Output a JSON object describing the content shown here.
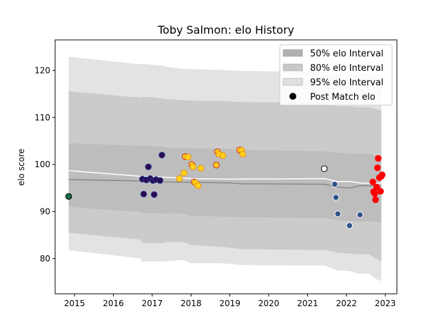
{
  "chart_data": {
    "type": "line",
    "title": "Toby Salmon: elo History",
    "xlabel": "",
    "ylabel": "elo score",
    "xlim": [
      2014.5,
      2023.3
    ],
    "ylim": [
      72.5,
      126.5
    ],
    "xticks": [
      2015,
      2016,
      2017,
      2018,
      2019,
      2020,
      2021,
      2022,
      2023
    ],
    "yticks": [
      80,
      90,
      100,
      110,
      120
    ],
    "grid": false,
    "legend_position": "top-right",
    "legend": [
      {
        "label": "50% elo Interval",
        "kind": "band",
        "color": "#b0b0b0"
      },
      {
        "label": "80% elo Interval",
        "kind": "band",
        "color": "#c8c8c8"
      },
      {
        "label": "95% elo Interval",
        "kind": "band",
        "color": "#e0e0e0"
      },
      {
        "label": "Post Match elo",
        "kind": "marker",
        "color": "#000000"
      }
    ],
    "bands": [
      {
        "name": "95% elo Interval",
        "color": "#e3e3e3",
        "x": [
          2014.85,
          2016.7,
          2016.75,
          2017.0,
          2017.3,
          2017.35,
          2017.8,
          2018.0,
          2018.8,
          2019.3,
          2021.45,
          2021.75,
          2022.1,
          2022.3,
          2022.6,
          2022.75,
          2022.9
        ],
        "upper": [
          122.9,
          121.3,
          121.4,
          121.2,
          121.0,
          120.8,
          120.3,
          120.3,
          120.1,
          119.9,
          119.7,
          119.3,
          119.2,
          119.2,
          119.3,
          118.7,
          118.4
        ],
        "lower": [
          81.8,
          80.0,
          79.3,
          79.4,
          79.3,
          79.4,
          79.7,
          79.0,
          79.0,
          78.6,
          78.5,
          77.5,
          77.3,
          76.8,
          76.8,
          75.7,
          75.2
        ]
      },
      {
        "name": "80% elo Interval",
        "color": "#cbcbcb",
        "x": [
          2014.85,
          2016.7,
          2016.75,
          2017.0,
          2017.3,
          2017.35,
          2017.8,
          2018.0,
          2018.8,
          2019.3,
          2021.45,
          2021.75,
          2022.1,
          2022.3,
          2022.6,
          2022.75,
          2022.9
        ],
        "upper": [
          115.6,
          114.2,
          114.4,
          114.3,
          114.0,
          113.9,
          113.7,
          113.6,
          113.5,
          113.3,
          113.1,
          112.4,
          112.4,
          112.2,
          112.2,
          111.8,
          111.5
        ],
        "lower": [
          85.5,
          84.0,
          83.3,
          83.3,
          83.3,
          83.5,
          83.5,
          82.9,
          82.5,
          82.0,
          81.8,
          81.3,
          81.0,
          80.9,
          80.9,
          80.0,
          79.4
        ]
      },
      {
        "name": "50% elo Interval",
        "color": "#bdbdbd",
        "x": [
          2014.85,
          2016.7,
          2016.75,
          2017.0,
          2017.3,
          2017.35,
          2017.8,
          2018.0,
          2018.8,
          2019.3,
          2021.45,
          2021.75,
          2022.1,
          2022.3,
          2022.6,
          2022.75,
          2022.9
        ],
        "upper": [
          104.5,
          104.0,
          104.1,
          103.9,
          103.7,
          103.6,
          103.5,
          103.4,
          103.4,
          103.1,
          102.8,
          102.5,
          102.4,
          102.3,
          102.3,
          101.9,
          101.9
        ],
        "lower": [
          91.0,
          89.9,
          89.6,
          89.7,
          89.5,
          89.6,
          89.5,
          89.1,
          88.9,
          88.8,
          88.6,
          88.2,
          88.0,
          87.9,
          87.9,
          87.8,
          87.7
        ]
      }
    ],
    "series": [
      {
        "kind": "line",
        "color": "#888888",
        "x": [
          2014.85,
          2016.7,
          2017.0,
          2017.3,
          2018.0,
          2019.0,
          2019.3,
          2021.45,
          2021.75,
          2022.1,
          2022.35,
          2022.9
        ],
        "y": [
          96.8,
          96.5,
          96.4,
          96.3,
          96.2,
          96.1,
          95.9,
          95.8,
          95.2,
          95.0,
          95.5,
          95.4
        ]
      },
      {
        "kind": "line",
        "color": "#ffffff",
        "x": [
          2014.85,
          2016.7,
          2017.0,
          2017.3,
          2017.8,
          2018.0,
          2018.8,
          2019.3,
          2021.45,
          2021.75,
          2022.1,
          2022.4,
          2022.9
        ],
        "y": [
          98.7,
          97.5,
          97.4,
          97.3,
          97.1,
          97.0,
          96.9,
          96.9,
          97.0,
          96.4,
          96.4,
          96.0,
          96.0
        ]
      }
    ],
    "points": [
      {
        "x": 2014.85,
        "y": 93.2,
        "fill": "#1b6e4a",
        "stroke": "#000000"
      },
      {
        "x": 2016.75,
        "y": 96.9,
        "fill": "#2b0a4f",
        "stroke": "#2b3f9a"
      },
      {
        "x": 2016.78,
        "y": 93.7,
        "fill": "#2b0a4f",
        "stroke": "#2b3f9a"
      },
      {
        "x": 2016.85,
        "y": 96.7,
        "fill": "#2b0a4f",
        "stroke": "#2b3f9a"
      },
      {
        "x": 2016.9,
        "y": 99.5,
        "fill": "#2b0a4f",
        "stroke": "#2b3f9a"
      },
      {
        "x": 2016.95,
        "y": 97.0,
        "fill": "#2b0a4f",
        "stroke": "#2b3f9a"
      },
      {
        "x": 2017.02,
        "y": 96.6,
        "fill": "#2b0a4f",
        "stroke": "#2b3f9a"
      },
      {
        "x": 2017.05,
        "y": 93.6,
        "fill": "#2b0a4f",
        "stroke": "#2b3f9a"
      },
      {
        "x": 2017.1,
        "y": 96.8,
        "fill": "#2b0a4f",
        "stroke": "#2b3f9a"
      },
      {
        "x": 2017.2,
        "y": 96.6,
        "fill": "#2b0a4f",
        "stroke": "#2b3f9a"
      },
      {
        "x": 2017.25,
        "y": 102.0,
        "fill": "#2b0a4f",
        "stroke": "#2b3f9a"
      },
      {
        "x": 2017.7,
        "y": 97.0,
        "fill": "#ffd21f",
        "stroke": "#f08c00"
      },
      {
        "x": 2017.82,
        "y": 98.2,
        "fill": "#ffd21f",
        "stroke": "#f08c00"
      },
      {
        "x": 2017.85,
        "y": 101.7,
        "fill": "#ffd21f",
        "stroke": "#d42020"
      },
      {
        "x": 2017.92,
        "y": 101.6,
        "fill": "#ffd21f",
        "stroke": "#f08c00"
      },
      {
        "x": 2018.02,
        "y": 100.0,
        "fill": "#ffd21f",
        "stroke": "#d42020"
      },
      {
        "x": 2018.05,
        "y": 99.5,
        "fill": "#ffd21f",
        "stroke": "#f08c00"
      },
      {
        "x": 2018.08,
        "y": 96.3,
        "fill": "#ffd21f",
        "stroke": "#d42020"
      },
      {
        "x": 2018.12,
        "y": 96.1,
        "fill": "#ffd21f",
        "stroke": "#f08c00"
      },
      {
        "x": 2018.18,
        "y": 95.5,
        "fill": "#ffd21f",
        "stroke": "#f08c00"
      },
      {
        "x": 2018.25,
        "y": 99.2,
        "fill": "#ffd21f",
        "stroke": "#f08c00"
      },
      {
        "x": 2018.65,
        "y": 99.9,
        "fill": "#ffd21f",
        "stroke": "#d42020"
      },
      {
        "x": 2018.68,
        "y": 102.7,
        "fill": "#ffd21f",
        "stroke": "#d42020"
      },
      {
        "x": 2018.72,
        "y": 102.2,
        "fill": "#ffd21f",
        "stroke": "#f08c00"
      },
      {
        "x": 2018.82,
        "y": 101.9,
        "fill": "#ffd21f",
        "stroke": "#f08c00"
      },
      {
        "x": 2019.25,
        "y": 103.1,
        "fill": "#ffd21f",
        "stroke": "#d42020"
      },
      {
        "x": 2019.3,
        "y": 103.0,
        "fill": "#ffd21f",
        "stroke": "#f08c00"
      },
      {
        "x": 2019.33,
        "y": 102.2,
        "fill": "#ffd21f",
        "stroke": "#f08c00"
      },
      {
        "x": 2021.43,
        "y": 99.1,
        "fill": "#ffffff",
        "stroke": "#000000"
      },
      {
        "x": 2021.7,
        "y": 95.8,
        "fill": "#2c5289",
        "stroke": "#ffffff"
      },
      {
        "x": 2021.73,
        "y": 93.0,
        "fill": "#2c5289",
        "stroke": "#ffffff"
      },
      {
        "x": 2021.78,
        "y": 89.5,
        "fill": "#2c5289",
        "stroke": "#ffffff"
      },
      {
        "x": 2022.08,
        "y": 87.0,
        "fill": "#2c5289",
        "stroke": "#ffffff"
      },
      {
        "x": 2022.35,
        "y": 89.3,
        "fill": "#2c5289",
        "stroke": "#ffffff"
      },
      {
        "x": 2022.68,
        "y": 96.3,
        "fill": "#ff0000",
        "stroke": "#ff0000"
      },
      {
        "x": 2022.7,
        "y": 94.2,
        "fill": "#ff0000",
        "stroke": "#ff0000"
      },
      {
        "x": 2022.73,
        "y": 93.8,
        "fill": "#ff0000",
        "stroke": "#ff0000"
      },
      {
        "x": 2022.75,
        "y": 92.5,
        "fill": "#ff0000",
        "stroke": "#ff0000"
      },
      {
        "x": 2022.78,
        "y": 95.2,
        "fill": "#ff0000",
        "stroke": "#ff0000"
      },
      {
        "x": 2022.8,
        "y": 99.3,
        "fill": "#ff0000",
        "stroke": "#ff0000"
      },
      {
        "x": 2022.82,
        "y": 101.3,
        "fill": "#ff0000",
        "stroke": "#ff0000"
      },
      {
        "x": 2022.85,
        "y": 97.2,
        "fill": "#ff0000",
        "stroke": "#ff0000"
      },
      {
        "x": 2022.88,
        "y": 94.3,
        "fill": "#ff0000",
        "stroke": "#ff0000"
      },
      {
        "x": 2022.9,
        "y": 97.5,
        "fill": "#ff0000",
        "stroke": "#ff0000"
      },
      {
        "x": 2022.92,
        "y": 97.8,
        "fill": "#ff0000",
        "stroke": "#ff0000"
      }
    ]
  }
}
